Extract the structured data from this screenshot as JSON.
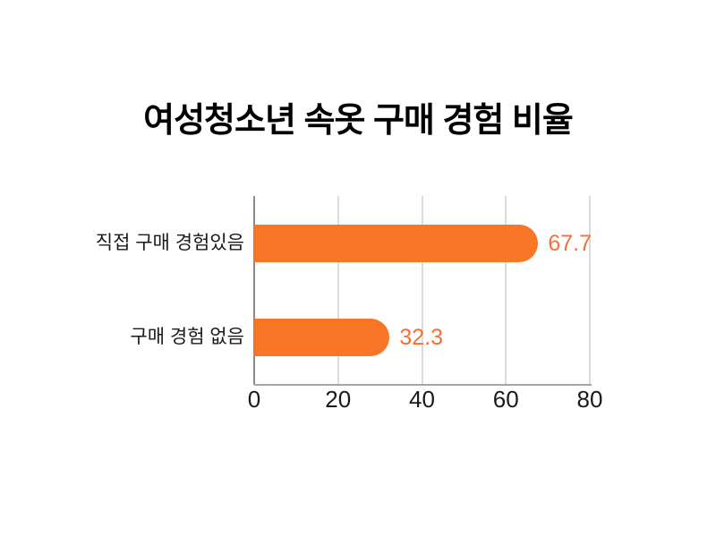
{
  "page": {
    "background": "#FFFFFF"
  },
  "chart_data": {
    "type": "bar",
    "orientation": "horizontal",
    "title": "여성청소년 속옷 구매 경험 비율",
    "categories": [
      "직접 구매 경험있음",
      "구매 경험 없음"
    ],
    "values": [
      67.7,
      32.3
    ],
    "value_labels": [
      "67.7",
      "32.3"
    ],
    "xlabel": "",
    "ylabel": "",
    "xlim": [
      0,
      80
    ],
    "x_ticks": [
      0,
      20,
      40,
      60,
      80
    ],
    "grid": "vertical-gridlines-on",
    "legend": false,
    "colors": {
      "bar": "#F97627",
      "value_label": "#F2713B",
      "category_label": "#1A1A1A",
      "tick_label": "#1A1A1A",
      "title": "#000000",
      "gridline": "#DCDCDC",
      "zero_line": "#8C8C8C",
      "axis_line": "#A6A6A6",
      "background": "#FFFFFF"
    }
  }
}
